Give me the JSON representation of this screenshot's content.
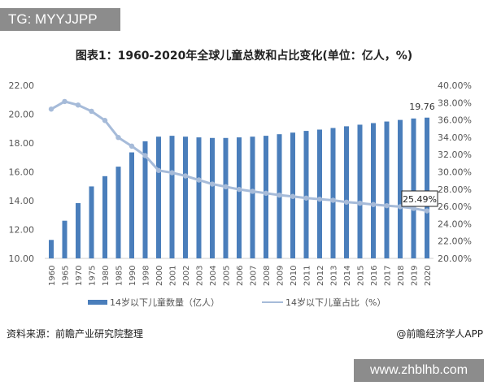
{
  "overlay_tag": "TG: MYYJJPP",
  "watermark_url": "www.zhblhb.com",
  "source": "资料来源：前瞻产业研究院整理",
  "credit": "@前瞻经济学人APP",
  "chart_data": {
    "type": "bar+line",
    "title": "图表1：1960-2020年全球儿童总数和占比变化(单位：亿人，%)",
    "categories": [
      "1960",
      "1965",
      "1970",
      "1975",
      "1980",
      "1985",
      "1990",
      "1998",
      "2000",
      "2001",
      "2002",
      "2003",
      "2004",
      "2005",
      "2006",
      "2007",
      "2008",
      "2009",
      "2010",
      "2011",
      "2012",
      "2013",
      "2014",
      "2015",
      "2016",
      "2017",
      "2018",
      "2019",
      "2020"
    ],
    "series": [
      {
        "name": "14岁以下儿童数量（亿人）",
        "type": "bar",
        "axis": "left",
        "color": "#4a7ebb",
        "values": [
          11.28,
          12.61,
          13.83,
          14.99,
          15.7,
          16.36,
          17.35,
          18.12,
          18.44,
          18.5,
          18.44,
          18.39,
          18.35,
          18.35,
          18.39,
          18.44,
          18.5,
          18.61,
          18.72,
          18.84,
          18.93,
          19.04,
          19.16,
          19.27,
          19.38,
          19.49,
          19.6,
          19.7,
          19.76
        ]
      },
      {
        "name": "14岁以下儿童占比（%）",
        "type": "line",
        "axis": "right",
        "color": "#a6bbd9",
        "values": [
          37.25,
          38.13,
          37.72,
          37.0,
          35.94,
          33.97,
          32.97,
          31.88,
          30.16,
          29.9,
          29.53,
          29.06,
          28.59,
          28.28,
          27.97,
          27.75,
          27.53,
          27.31,
          27.16,
          26.97,
          26.84,
          26.72,
          26.5,
          26.38,
          26.22,
          26.09,
          25.97,
          25.78,
          25.49
        ]
      }
    ],
    "left_axis": {
      "ylim": [
        10,
        22
      ],
      "ticks": [
        "10.00",
        "12.00",
        "14.00",
        "16.00",
        "18.00",
        "20.00",
        "22.00"
      ]
    },
    "right_axis": {
      "ylim": [
        20,
        40
      ],
      "ticks": [
        "20.00%",
        "22.00%",
        "24.00%",
        "26.00%",
        "28.00%",
        "30.00%",
        "32.00%",
        "34.00%",
        "36.00%",
        "38.00%",
        "40.00%"
      ]
    },
    "annotations": {
      "bar_last": "19.76",
      "line_last": "25.49%"
    },
    "grid": false,
    "legend": "bottom"
  }
}
